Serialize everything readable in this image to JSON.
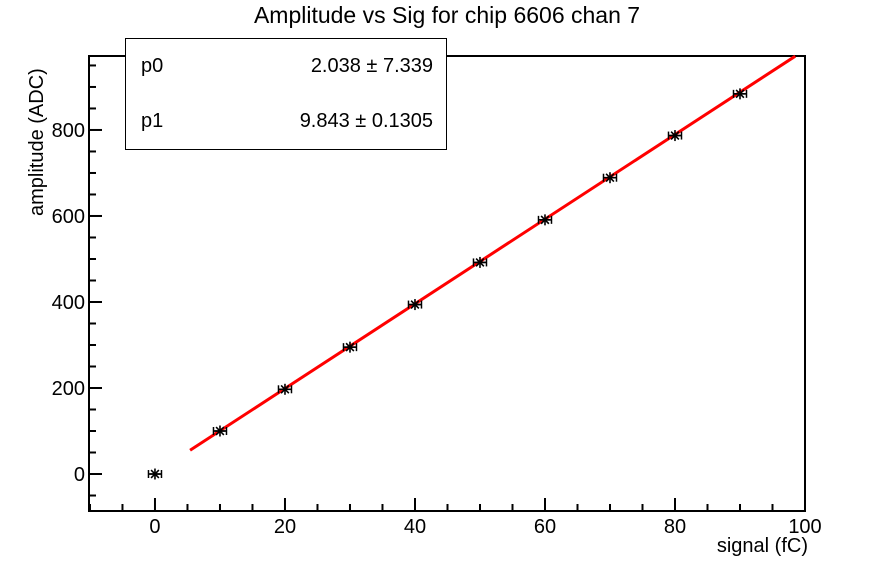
{
  "title": "Amplitude vs Sig for chip 6606 chan 7",
  "stats_box": {
    "rows": [
      {
        "name": "p0",
        "value": "2.038 ± 7.339"
      },
      {
        "name": "p1",
        "value": "9.843 ± 0.1305"
      }
    ]
  },
  "chart_data": {
    "type": "scatter",
    "title": "Amplitude vs Sig for chip 6606 chan 7",
    "xlabel": "signal (fC)",
    "ylabel": "amplitude (ADC)",
    "xlim": [
      -10.15,
      100
    ],
    "ylim": [
      -86,
      972
    ],
    "x_ticks": [
      0,
      20,
      40,
      60,
      80,
      100
    ],
    "y_ticks": [
      0,
      200,
      400,
      600,
      800
    ],
    "x_minor_step": 5,
    "y_minor_step": 50,
    "grid": false,
    "legend": "none",
    "points": {
      "x": [
        0,
        10,
        20,
        30,
        40,
        50,
        60,
        70,
        80,
        90
      ],
      "y": [
        0,
        100,
        197,
        295,
        394,
        492,
        591,
        689,
        787,
        884
      ],
      "xerr": 1,
      "marker": "asterisk",
      "marker_color": "#000000"
    },
    "fit": {
      "label_p0": "p0",
      "p0": 2.038,
      "p0_err": 7.339,
      "label_p1": "p1",
      "p1": 9.843,
      "p1_err": 0.1305,
      "x_start": 5.4,
      "x_end": 98.5,
      "color": "#ff0000"
    },
    "frame_color": "#000000"
  }
}
